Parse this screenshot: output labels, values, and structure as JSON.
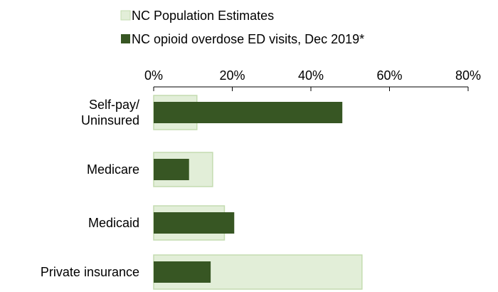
{
  "chart_data": {
    "type": "bar",
    "orientation": "horizontal",
    "legend_position": "top",
    "grid": false,
    "categories": [
      "Self-pay/\nUninsured",
      "Medicare",
      "Medicaid",
      "Private insurance"
    ],
    "series": [
      {
        "name": "NC Population Estimates",
        "color": "#e2eed8",
        "border": "#c4dcb0",
        "values": [
          11,
          15,
          18,
          53
        ]
      },
      {
        "name": "NC opioid overdose ED visits, Dec 2019*",
        "color": "#375623",
        "values": [
          48,
          9,
          20.5,
          14.5
        ]
      }
    ],
    "xlim": [
      0,
      80
    ],
    "x_ticks": [
      0,
      20,
      40,
      60,
      80
    ],
    "x_tick_labels": [
      "0%",
      "20%",
      "40%",
      "60%",
      "80%"
    ],
    "x_axis_position": "top"
  }
}
